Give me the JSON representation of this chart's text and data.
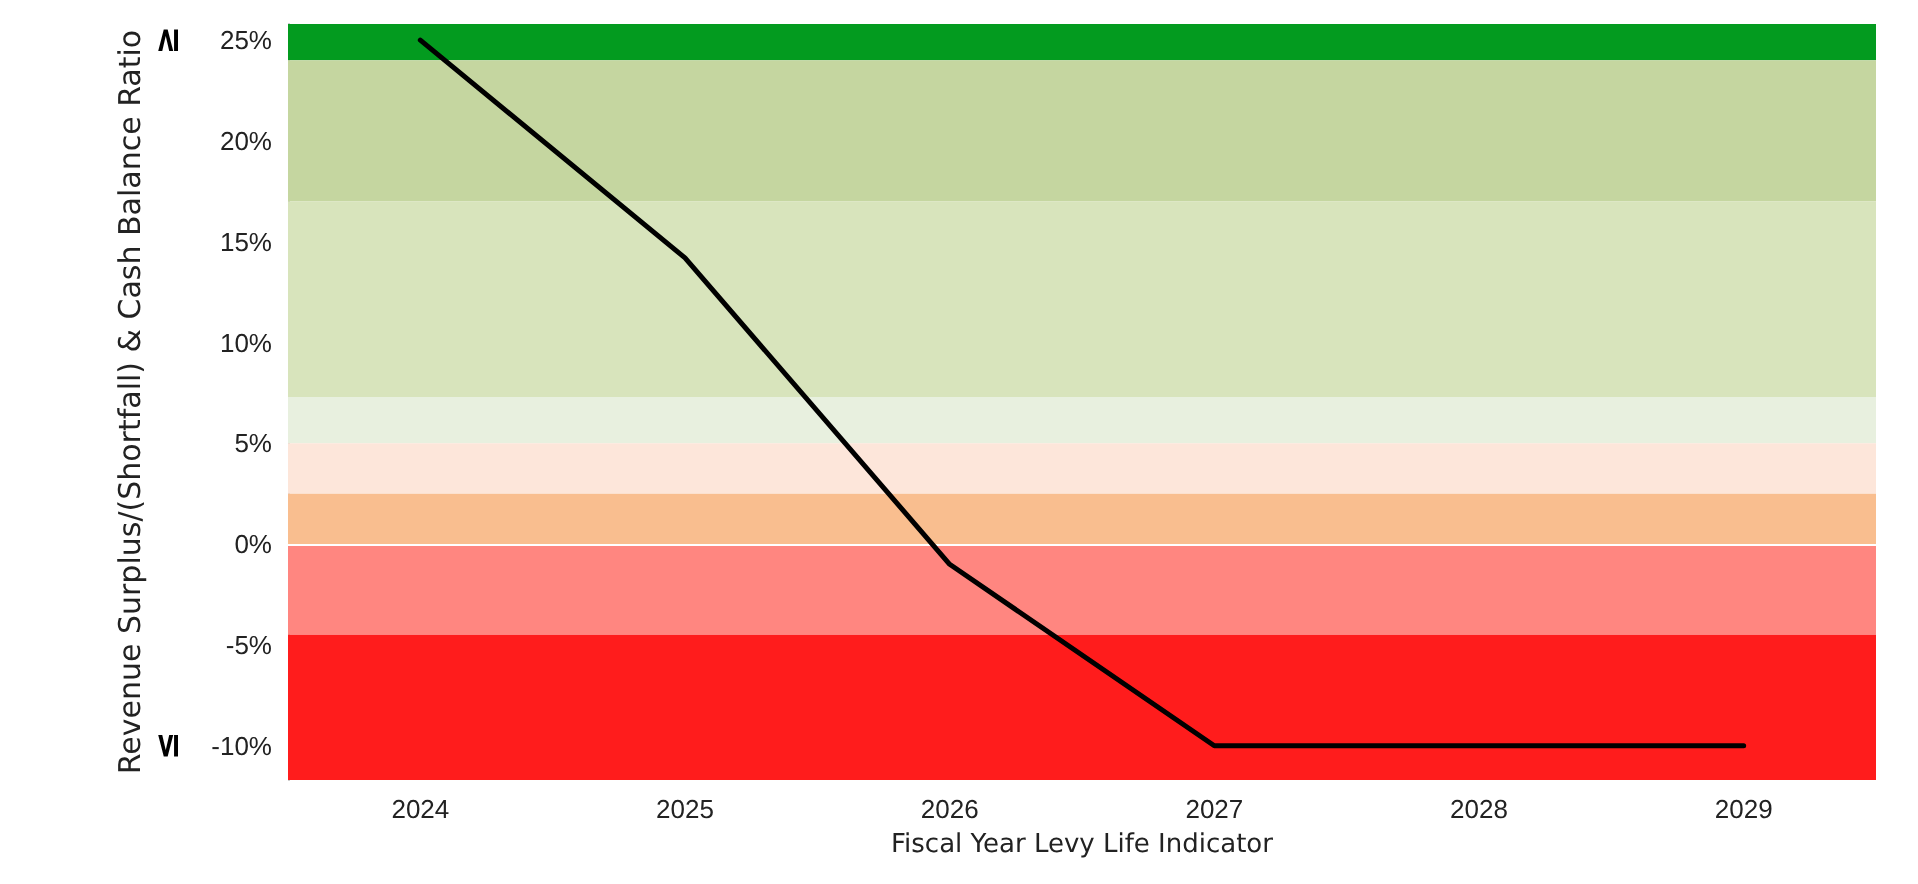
{
  "chart_data": {
    "type": "line",
    "xlabel": "Fiscal Year Levy Life Indicator",
    "ylabel": "Revenue Surplus/(Shortfall) & Cash Balance Ratio",
    "categories": [
      "2024",
      "2025",
      "2026",
      "2027",
      "2028",
      "2029"
    ],
    "series": [
      {
        "color": "#000000",
        "values": [
          25,
          14.2,
          -1,
          -10,
          -10,
          -10
        ]
      }
    ],
    "ylim": [
      -11.7,
      25.8
    ],
    "yticks": [
      {
        "value": -10,
        "label": "-10%"
      },
      {
        "value": -5,
        "label": "-5%"
      },
      {
        "value": 0,
        "label": "0%"
      },
      {
        "value": 5,
        "label": "5%"
      },
      {
        "value": 10,
        "label": "10%"
      },
      {
        "value": 15,
        "label": "15%"
      },
      {
        "value": 20,
        "label": "20%"
      },
      {
        "value": 25,
        "label": "25%"
      }
    ],
    "bands": [
      {
        "axis": "y",
        "from": 24,
        "to": 25.8,
        "color": "#039b1f"
      },
      {
        "axis": "y",
        "from": 17,
        "to": 24,
        "color": "#c5d6a0"
      },
      {
        "axis": "y",
        "from": 7.3,
        "to": 17,
        "color": "#d8e4bc"
      },
      {
        "axis": "y",
        "from": 5,
        "to": 7.3,
        "color": "#e8f0df"
      },
      {
        "axis": "y",
        "from": 2.5,
        "to": 5,
        "color": "#fde6da"
      },
      {
        "axis": "y",
        "from": 0,
        "to": 2.5,
        "color": "#f9be8f"
      },
      {
        "axis": "y",
        "from": -4.5,
        "to": 0,
        "color": "#ff8680"
      },
      {
        "axis": "y",
        "from": -11.7,
        "to": -4.5,
        "color": "#ff1c1c"
      }
    ],
    "ref_lines": [
      {
        "axis": "y",
        "value": 0,
        "color": "#ffffff"
      }
    ],
    "annotations": [
      "≥",
      "≤"
    ],
    "marker": "none",
    "line_style": "solid",
    "grid": false
  }
}
